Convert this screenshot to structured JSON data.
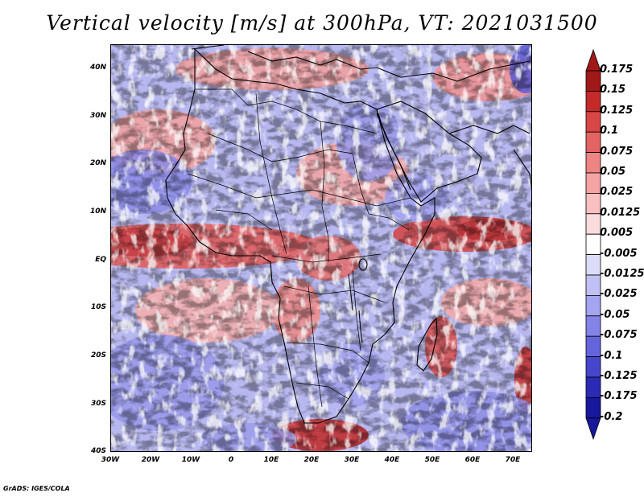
{
  "title": "Vertical velocity [m/s] at 300hPa, VT: 2021031500",
  "footer": "GrADS: IGES/COLA",
  "lat_labels": [
    "40N",
    "30N",
    "20N",
    "10N",
    "EQ",
    "10S",
    "20S",
    "30S",
    "40S"
  ],
  "lon_labels": [
    "30W",
    "20W",
    "10W",
    "0",
    "10E",
    "20E",
    "30E",
    "40E",
    "50E",
    "60E",
    "70E"
  ],
  "colorbar": {
    "labels": [
      "0.175",
      "0.15",
      "0.125",
      "0.1",
      "0.075",
      "0.05",
      "0.025",
      "0.0125",
      "0.005",
      "-0.005",
      "-0.0125",
      "-0.025",
      "-0.05",
      "-0.075",
      "-0.1",
      "-0.125",
      "-0.175",
      "-0.2"
    ],
    "colors": [
      "#a01818",
      "#c42a2a",
      "#d84646",
      "#e46464",
      "#ee8484",
      "#f4a4a4",
      "#f8c0c0",
      "#fbdcdc",
      "#ffffff",
      "#dcdcf8",
      "#c0c0f4",
      "#a4a4f0",
      "#8484e8",
      "#6464dc",
      "#4646cc",
      "#2a2ab4",
      "#18189c"
    ]
  },
  "map": {
    "region": "Africa",
    "lon_range": [
      -30,
      75
    ],
    "lat_range": [
      -40,
      45
    ],
    "fill_style": "shaded",
    "coastlines": true,
    "country_borders": true
  }
}
